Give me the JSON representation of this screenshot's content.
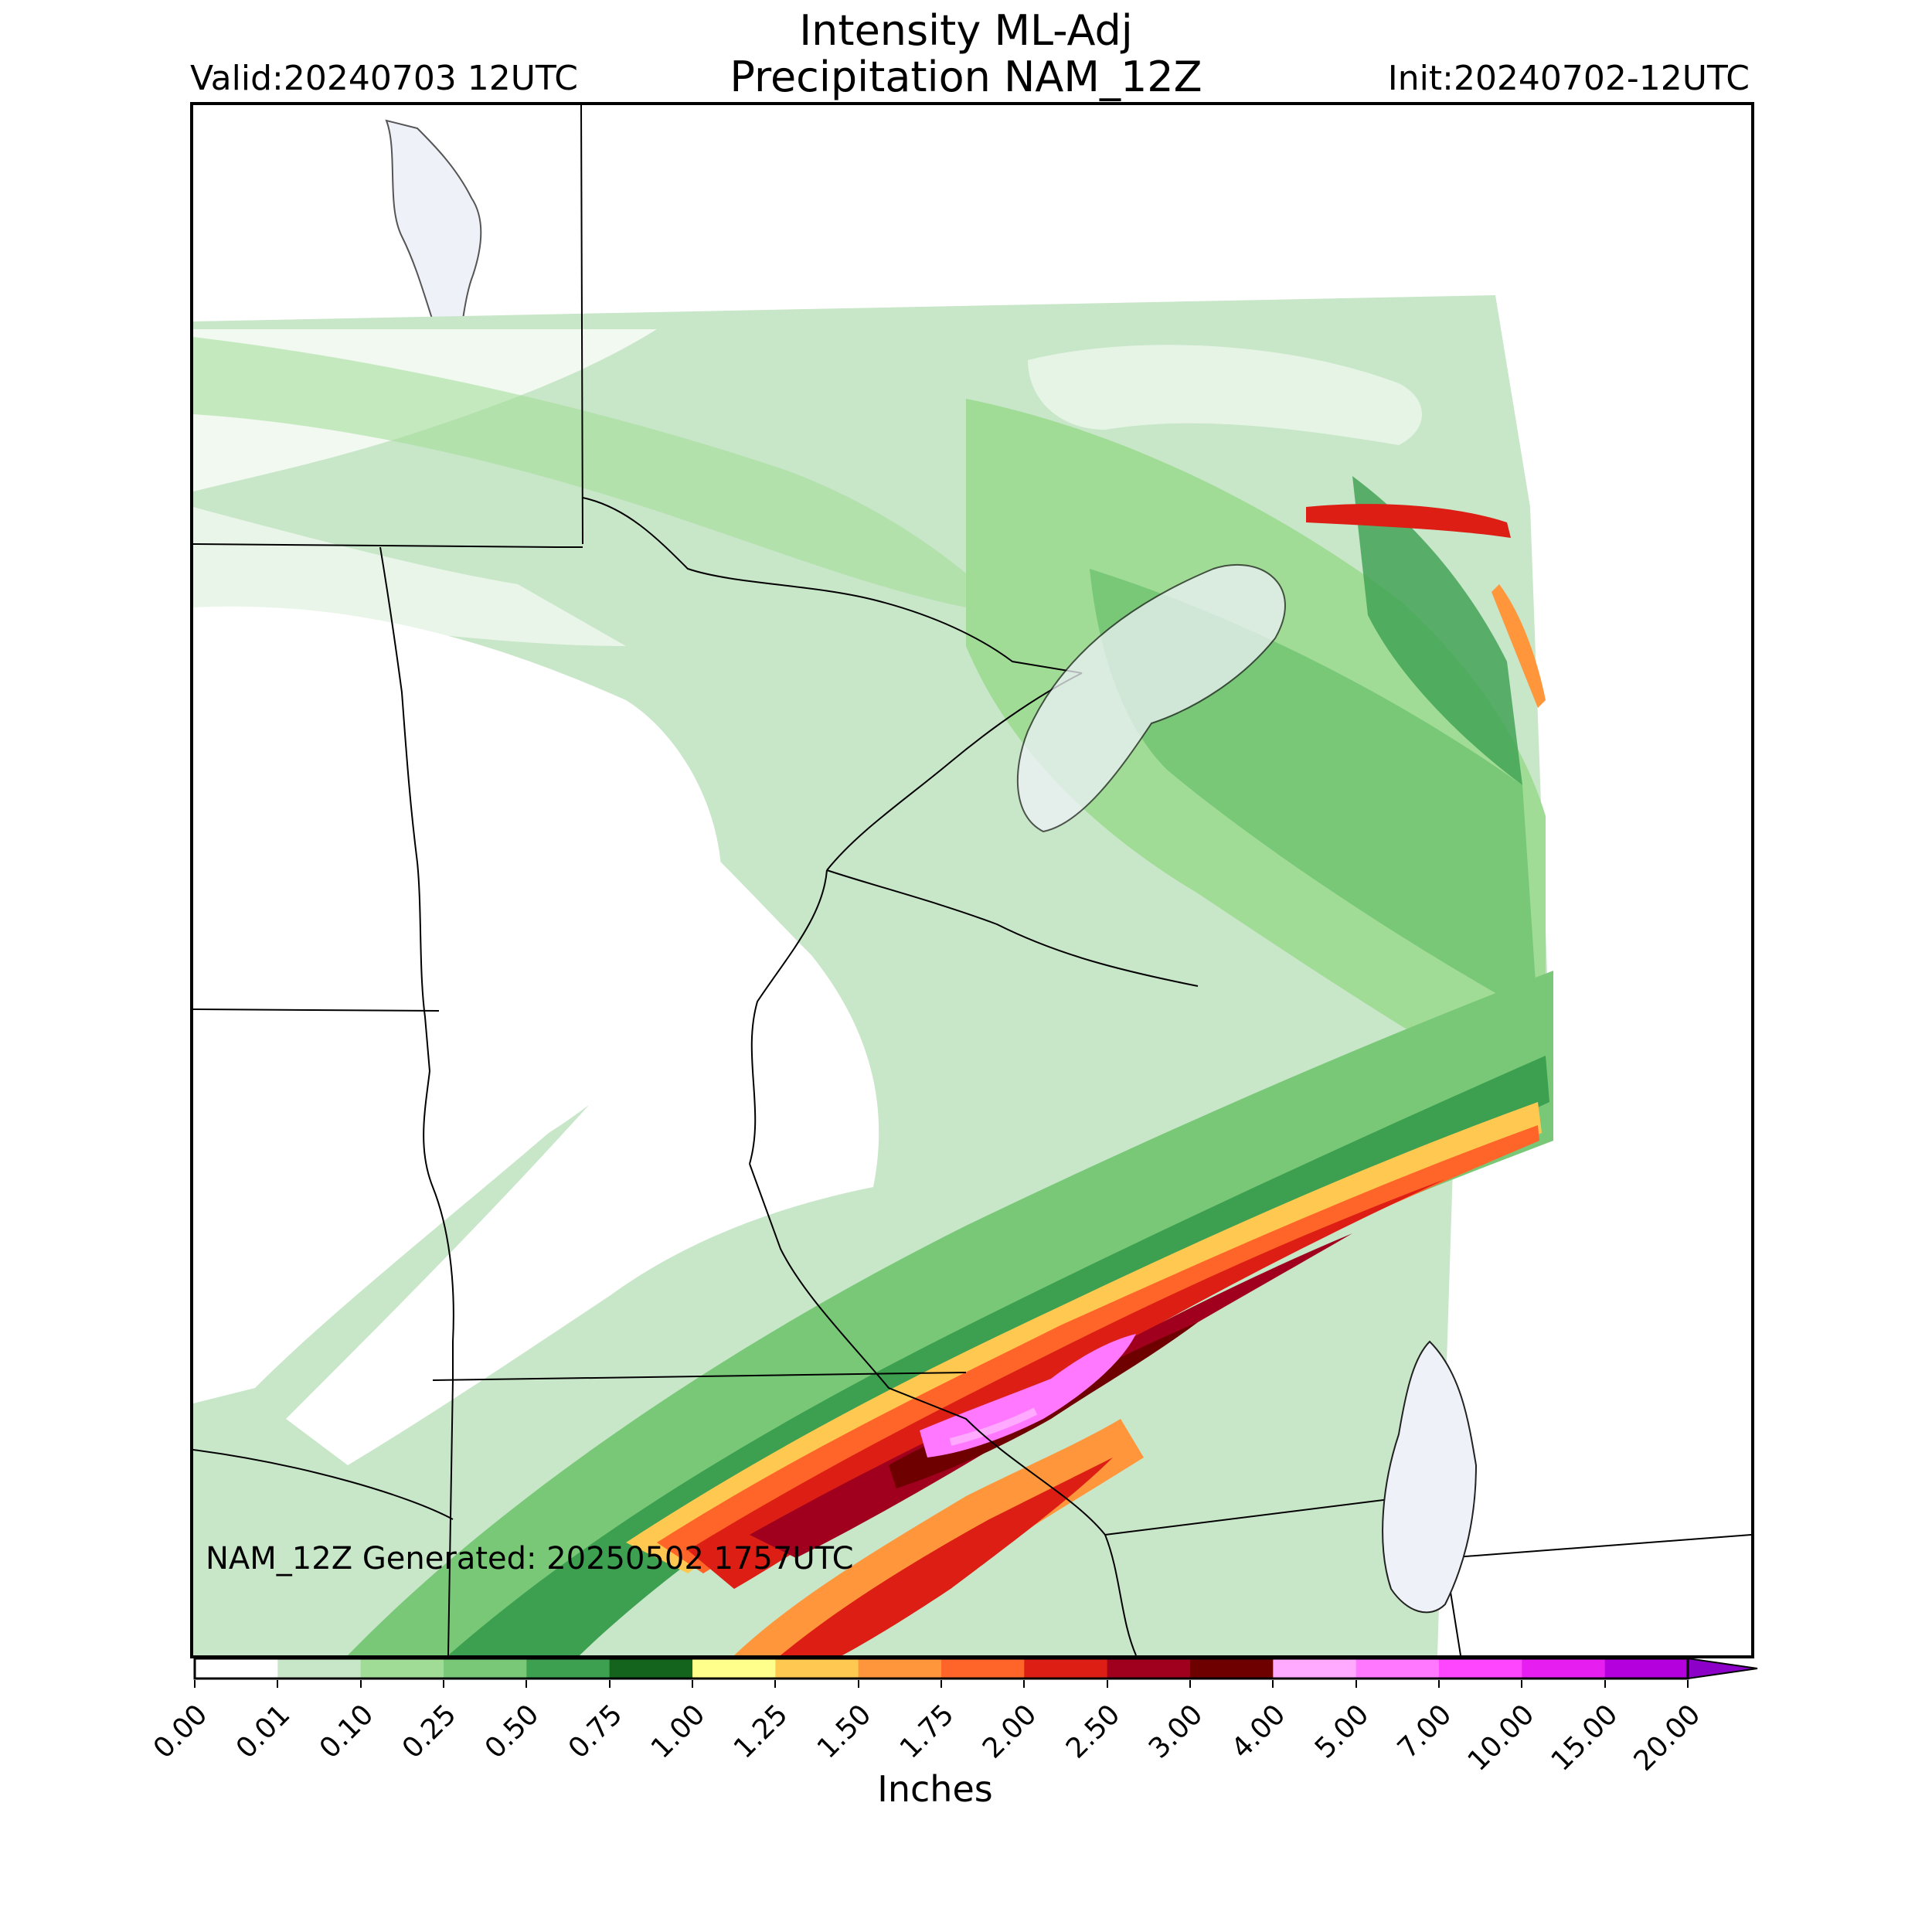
{
  "title": {
    "line1": "Intensity ML-Adj",
    "line2": "Precipitation NAM_12Z"
  },
  "valid_label": "Valid:20240703 12UTC",
  "init_label": "Init:20240702-12UTC",
  "generated_note": "NAM_12Z Generated: 20250502 1757UTC",
  "colorbar": {
    "label": "Inches",
    "ticks": [
      "0.00",
      "0.01",
      "0.10",
      "0.25",
      "0.50",
      "0.75",
      "1.00",
      "1.25",
      "1.50",
      "1.75",
      "2.00",
      "2.50",
      "3.00",
      "4.00",
      "5.00",
      "7.00",
      "10.00",
      "15.00",
      "20.00"
    ],
    "colors": [
      "#ffffff",
      "#c8e6c8",
      "#a0dc96",
      "#78c878",
      "#3ca050",
      "#14641e",
      "#ffff8c",
      "#ffc850",
      "#ff963c",
      "#ff6428",
      "#dc1e14",
      "#a0001e",
      "#6e0000",
      "#ffaaff",
      "#ff78ff",
      "#ff46ff",
      "#e61ef0",
      "#b400dc",
      "#8c00c8"
    ],
    "extend": "max"
  },
  "colors": {
    "lake": "#eef2f8",
    "border": "#000000"
  }
}
